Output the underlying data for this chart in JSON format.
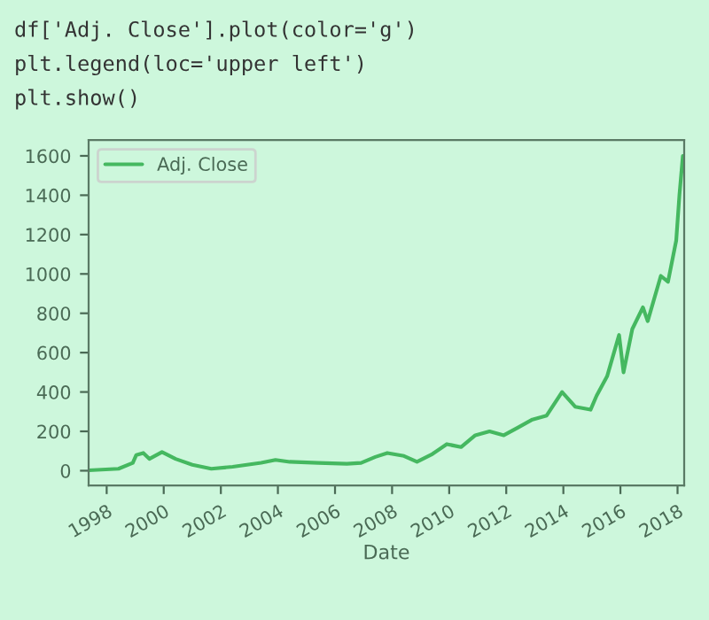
{
  "chart_data": {
    "type": "line",
    "xlabel": "Date",
    "annotations": [
      "df['Adj. Close'].plot(color='g')",
      "plt.legend(loc='upper left')",
      "plt.show()"
    ],
    "x": [
      "1997-05-15",
      "1998-06-01",
      "1998-12-01",
      "1999-01-15",
      "1999-04-15",
      "1999-07-01",
      "1999-12-10",
      "2000-06-01",
      "2001-01-01",
      "2001-09-01",
      "2002-06-01",
      "2003-06-01",
      "2003-12-01",
      "2004-06-01",
      "2005-06-01",
      "2006-06-01",
      "2006-12-01",
      "2007-06-01",
      "2007-11-01",
      "2008-06-01",
      "2008-11-15",
      "2009-06-01",
      "2009-12-01",
      "2010-06-01",
      "2010-12-01",
      "2011-06-01",
      "2011-12-01",
      "2012-06-01",
      "2012-12-01",
      "2013-06-01",
      "2013-12-15",
      "2014-06-01",
      "2014-12-15",
      "2015-03-01",
      "2015-07-15",
      "2015-12-15",
      "2016-02-10",
      "2016-06-01",
      "2016-10-15",
      "2016-12-15",
      "2017-06-01",
      "2017-09-01",
      "2017-12-15",
      "2018-01-25",
      "2018-03-10"
    ],
    "series": [
      {
        "name": "Adj. Close",
        "color": "#45b860",
        "values": [
          2,
          10,
          40,
          80,
          90,
          60,
          95,
          60,
          30,
          10,
          20,
          40,
          55,
          45,
          40,
          35,
          40,
          70,
          90,
          75,
          45,
          85,
          135,
          120,
          180,
          200,
          180,
          220,
          260,
          280,
          400,
          325,
          310,
          380,
          480,
          690,
          500,
          720,
          830,
          760,
          990,
          960,
          1170,
          1400,
          1600
        ]
      }
    ],
    "xlim": [
      "1997-05-15",
      "2018-03-27"
    ],
    "xticks": [
      {
        "value": "1998-01-01",
        "label": "1998"
      },
      {
        "value": "2000-01-01",
        "label": "2000"
      },
      {
        "value": "2002-01-01",
        "label": "2002"
      },
      {
        "value": "2004-01-01",
        "label": "2004"
      },
      {
        "value": "2006-01-01",
        "label": "2006"
      },
      {
        "value": "2008-01-01",
        "label": "2008"
      },
      {
        "value": "2010-01-01",
        "label": "2010"
      },
      {
        "value": "2012-01-01",
        "label": "2012"
      },
      {
        "value": "2014-01-01",
        "label": "2014"
      },
      {
        "value": "2016-01-01",
        "label": "2016"
      },
      {
        "value": "2018-01-01",
        "label": "2018"
      }
    ],
    "ylim": [
      -75,
      1680
    ],
    "yticks": [
      0,
      200,
      400,
      600,
      800,
      1000,
      1200,
      1400,
      1600
    ],
    "grid": false,
    "legend": "top left",
    "marker": "none",
    "line_style": "solid"
  }
}
